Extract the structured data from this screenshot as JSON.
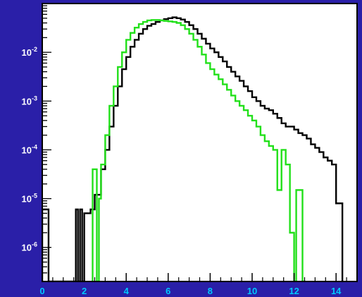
{
  "chart_data": {
    "type": "line",
    "drawstyle": "steps",
    "xlim": [
      0,
      15
    ],
    "ylim": [
      2e-07,
      0.1
    ],
    "yscale": "log",
    "grid": false,
    "x_ticks": [
      {
        "value": 0,
        "label": "0"
      },
      {
        "value": 2,
        "label": "2"
      },
      {
        "value": 4,
        "label": "4"
      },
      {
        "value": 6,
        "label": "6"
      },
      {
        "value": 8,
        "label": "8"
      },
      {
        "value": 10,
        "label": "10"
      },
      {
        "value": 12,
        "label": "12"
      },
      {
        "value": 14,
        "label": "14"
      }
    ],
    "y_ticks": [
      {
        "value": 0.01,
        "base": "10",
        "exp": "-2"
      },
      {
        "value": 0.001,
        "base": "10",
        "exp": "-3"
      },
      {
        "value": 0.0001,
        "base": "10",
        "exp": "-4"
      },
      {
        "value": 1e-05,
        "base": "10",
        "exp": "-5"
      },
      {
        "value": 1e-06,
        "base": "10",
        "exp": "-6"
      }
    ],
    "series": [
      {
        "color": "#000000",
        "points": [
          [
            0.0,
            6e-06
          ],
          [
            0.2,
            6e-06
          ],
          [
            0.3,
            2e-07
          ],
          [
            1.5,
            2e-07
          ],
          [
            1.6,
            6e-06
          ],
          [
            1.7,
            2e-07
          ],
          [
            1.8,
            6e-06
          ],
          [
            1.9,
            2e-07
          ],
          [
            2.0,
            5e-06
          ],
          [
            2.3,
            6e-06
          ],
          [
            2.5,
            1.2e-05
          ],
          [
            2.7,
            1.2e-05
          ],
          [
            2.8,
            4e-05
          ],
          [
            3.0,
            0.0001
          ],
          [
            3.2,
            0.0003
          ],
          [
            3.4,
            0.0008
          ],
          [
            3.6,
            0.002
          ],
          [
            3.8,
            0.0045
          ],
          [
            4.0,
            0.008
          ],
          [
            4.2,
            0.013
          ],
          [
            4.4,
            0.018
          ],
          [
            4.6,
            0.024
          ],
          [
            4.8,
            0.03
          ],
          [
            5.0,
            0.035
          ],
          [
            5.2,
            0.038
          ],
          [
            5.4,
            0.042
          ],
          [
            5.6,
            0.045
          ],
          [
            5.8,
            0.048
          ],
          [
            6.0,
            0.05
          ],
          [
            6.2,
            0.052
          ],
          [
            6.4,
            0.05
          ],
          [
            6.6,
            0.047
          ],
          [
            6.8,
            0.042
          ],
          [
            7.0,
            0.036
          ],
          [
            7.2,
            0.03
          ],
          [
            7.4,
            0.024
          ],
          [
            7.6,
            0.019
          ],
          [
            7.8,
            0.015
          ],
          [
            8.0,
            0.012
          ],
          [
            8.2,
            0.01
          ],
          [
            8.4,
            0.008
          ],
          [
            8.6,
            0.0065
          ],
          [
            8.8,
            0.005
          ],
          [
            9.0,
            0.004
          ],
          [
            9.2,
            0.0032
          ],
          [
            9.4,
            0.0026
          ],
          [
            9.6,
            0.002
          ],
          [
            9.8,
            0.0016
          ],
          [
            10.0,
            0.0012
          ],
          [
            10.2,
            0.001
          ],
          [
            10.4,
            0.0008
          ],
          [
            10.6,
            0.0007
          ],
          [
            10.8,
            0.00065
          ],
          [
            11.0,
            0.00055
          ],
          [
            11.2,
            0.00045
          ],
          [
            11.4,
            0.00035
          ],
          [
            11.6,
            0.0003
          ],
          [
            11.8,
            0.0003
          ],
          [
            12.0,
            0.00026
          ],
          [
            12.2,
            0.00022
          ],
          [
            12.4,
            0.0002
          ],
          [
            12.6,
            0.00017
          ],
          [
            12.8,
            0.00013
          ],
          [
            13.0,
            0.00011
          ],
          [
            13.2,
            9e-05
          ],
          [
            13.4,
            7e-05
          ],
          [
            13.6,
            6e-05
          ],
          [
            13.8,
            5e-05
          ],
          [
            14.0,
            8e-06
          ],
          [
            14.2,
            8e-06
          ]
        ]
      },
      {
        "color": "#22e01a",
        "points": [
          [
            2.4,
            4e-05
          ],
          [
            2.6,
            2e-07
          ],
          [
            2.7,
            1e-05
          ],
          [
            2.8,
            5e-05
          ],
          [
            3.0,
            0.0002
          ],
          [
            3.2,
            0.0008
          ],
          [
            3.4,
            0.002
          ],
          [
            3.6,
            0.005
          ],
          [
            3.8,
            0.01
          ],
          [
            4.0,
            0.018
          ],
          [
            4.2,
            0.025
          ],
          [
            4.4,
            0.032
          ],
          [
            4.6,
            0.038
          ],
          [
            4.8,
            0.042
          ],
          [
            5.0,
            0.045
          ],
          [
            5.2,
            0.046
          ],
          [
            5.4,
            0.046
          ],
          [
            5.6,
            0.045
          ],
          [
            5.8,
            0.044
          ],
          [
            6.0,
            0.043
          ],
          [
            6.2,
            0.042
          ],
          [
            6.4,
            0.04
          ],
          [
            6.6,
            0.036
          ],
          [
            6.8,
            0.03
          ],
          [
            7.0,
            0.024
          ],
          [
            7.2,
            0.018
          ],
          [
            7.4,
            0.013
          ],
          [
            7.6,
            0.009
          ],
          [
            7.8,
            0.006
          ],
          [
            8.0,
            0.0045
          ],
          [
            8.2,
            0.0035
          ],
          [
            8.4,
            0.0028
          ],
          [
            8.6,
            0.0022
          ],
          [
            8.8,
            0.0017
          ],
          [
            9.0,
            0.0013
          ],
          [
            9.2,
            0.001
          ],
          [
            9.4,
            0.0008
          ],
          [
            9.6,
            0.00065
          ],
          [
            9.8,
            0.0005
          ],
          [
            10.0,
            0.0004
          ],
          [
            10.2,
            0.0003
          ],
          [
            10.4,
            0.0002
          ],
          [
            10.6,
            0.00015
          ],
          [
            10.8,
            0.00012
          ],
          [
            11.0,
            0.0001
          ],
          [
            11.2,
            1.5e-05
          ],
          [
            11.4,
            0.0001
          ],
          [
            11.6,
            5e-05
          ],
          [
            11.8,
            2e-06
          ],
          [
            12.0,
            2e-07
          ],
          [
            12.1,
            1.5e-05
          ],
          [
            12.3,
            1.5e-05
          ],
          [
            12.4,
            2e-07
          ]
        ]
      }
    ]
  }
}
